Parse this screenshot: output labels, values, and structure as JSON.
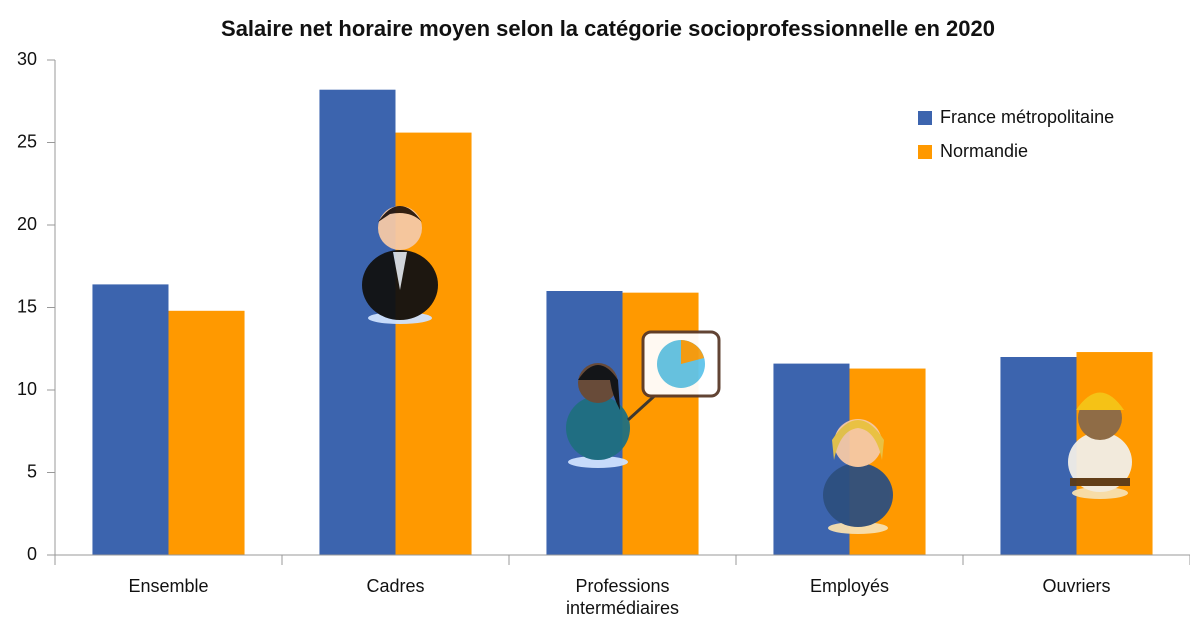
{
  "chart_data": {
    "type": "bar",
    "title": "Salaire net horaire moyen selon la catégorie socioprofessionnelle en 2020",
    "categories": [
      "Ensemble",
      "Cadres",
      "Professions intermédiaires",
      "Employés",
      "Ouvriers"
    ],
    "series": [
      {
        "name": "France métropolitaine",
        "color": "#3c64ae",
        "values": [
          16.4,
          28.2,
          16.0,
          11.6,
          12.0
        ]
      },
      {
        "name": "Normandie",
        "color": "#ff9900",
        "values": [
          14.8,
          25.6,
          15.9,
          11.3,
          12.3
        ]
      }
    ],
    "ylim": [
      0,
      30
    ],
    "yticks": [
      0,
      5,
      10,
      15,
      20,
      25,
      30
    ],
    "grid": false,
    "legend": "top-right"
  }
}
